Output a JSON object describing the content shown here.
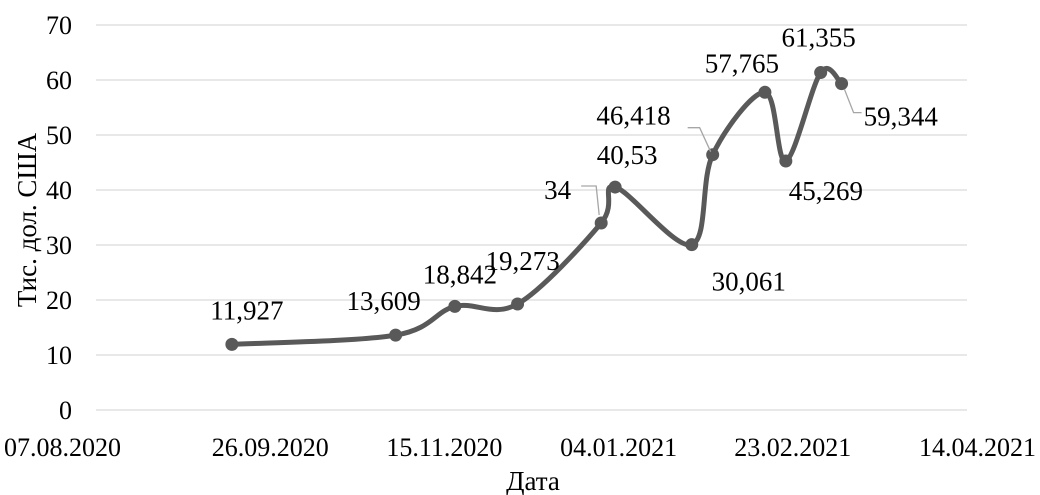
{
  "chart_data": {
    "type": "line",
    "title": "",
    "xlabel": "Дата",
    "ylabel": "Тис. дол. США",
    "ylim": [
      0,
      70
    ],
    "yticks": [
      "0",
      "10",
      "20",
      "30",
      "40",
      "50",
      "60",
      "70"
    ],
    "xlim": [
      "2020-08-07",
      "2021-04-14"
    ],
    "xticks": [
      "07.08.2020",
      "26.09.2020",
      "15.11.2020",
      "04.01.2021",
      "23.02.2021",
      "14.04.2021"
    ],
    "grid": true,
    "legend": "none",
    "smooth": true,
    "series": [
      {
        "color": "#595959",
        "points": [
          {
            "x": "2020-09-15",
            "y": 11.927,
            "label": "11,927"
          },
          {
            "x": "2020-11-01",
            "y": 13.609,
            "label": "13,609"
          },
          {
            "x": "2020-11-18",
            "y": 18.842,
            "label": "18,842"
          },
          {
            "x": "2020-12-06",
            "y": 19.273,
            "label": "19,273"
          },
          {
            "x": "2020-12-30",
            "y": 34,
            "label": "34"
          },
          {
            "x": "2021-01-03",
            "y": 40.53,
            "label": "40,53"
          },
          {
            "x": "2021-01-25",
            "y": 30.061,
            "label": "30,061"
          },
          {
            "x": "2021-01-31",
            "y": 46.418,
            "label": "46,418"
          },
          {
            "x": "2021-02-15",
            "y": 57.765,
            "label": "57,765"
          },
          {
            "x": "2021-02-21",
            "y": 45.269,
            "label": "45,269"
          },
          {
            "x": "2021-03-03",
            "y": 61.355,
            "label": "61,355"
          },
          {
            "x": "2021-03-09",
            "y": 59.344,
            "label": "59,344"
          }
        ]
      }
    ]
  }
}
